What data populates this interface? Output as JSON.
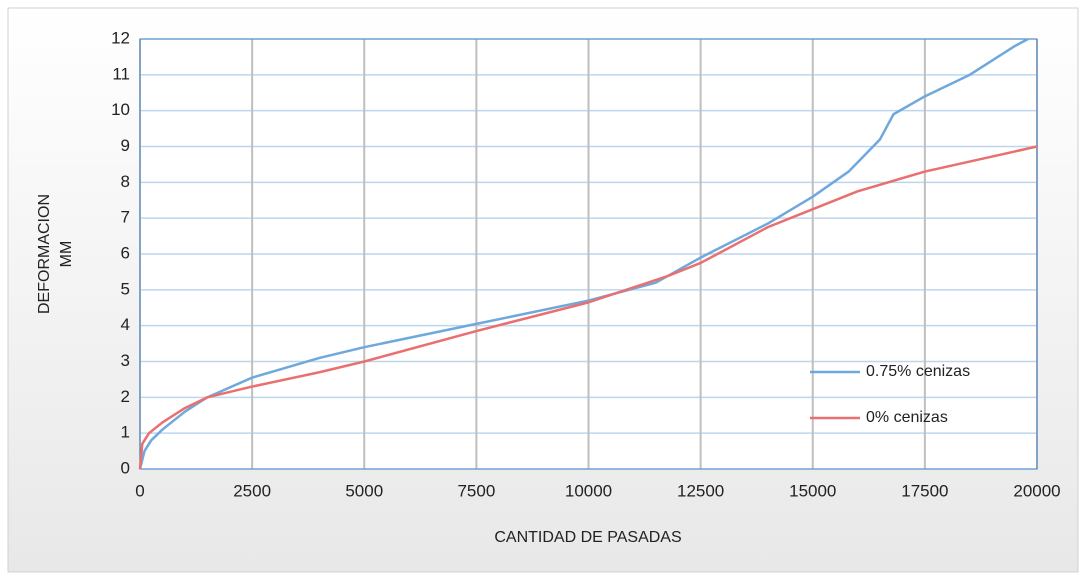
{
  "chart_data": {
    "type": "line",
    "x_label": "CANTIDAD DE PASADAS",
    "y_label": [
      "DEFORMACION",
      "MM"
    ],
    "series": [
      {
        "name": "0.75% cenizas",
        "color": "#6fa8dc",
        "x": [
          0,
          100,
          250,
          500,
          1000,
          1500,
          2500,
          4000,
          5000,
          7500,
          10000,
          11500,
          12500,
          14000,
          15000,
          15800,
          16500,
          16800,
          17500,
          18500,
          19500,
          19800
        ],
        "values": [
          0,
          0.5,
          0.8,
          1.1,
          1.6,
          2.0,
          2.55,
          3.1,
          3.4,
          4.05,
          4.7,
          5.2,
          5.9,
          6.85,
          7.6,
          8.3,
          9.2,
          9.9,
          10.4,
          11.0,
          11.8,
          12.0
        ]
      },
      {
        "name": "0% cenizas",
        "color": "#ea6f6f",
        "x": [
          0,
          50,
          200,
          500,
          1000,
          1500,
          2500,
          4000,
          5000,
          7500,
          10000,
          11800,
          12500,
          14000,
          15000,
          16000,
          17500,
          20000
        ],
        "values": [
          0,
          0.7,
          1.0,
          1.3,
          1.7,
          2.0,
          2.3,
          2.7,
          3.0,
          3.85,
          4.65,
          5.4,
          5.75,
          6.75,
          7.25,
          7.75,
          8.3,
          9.0
        ]
      }
    ],
    "xlim": [
      0,
      20000
    ],
    "xticks": [
      0,
      2500,
      5000,
      7500,
      10000,
      12500,
      15000,
      17500,
      20000
    ],
    "ylim": [
      0,
      12
    ],
    "yticks": [
      0,
      1,
      2,
      3,
      4,
      5,
      6,
      7,
      8,
      9,
      10,
      11,
      12
    ],
    "grid": true,
    "legend": "right"
  }
}
